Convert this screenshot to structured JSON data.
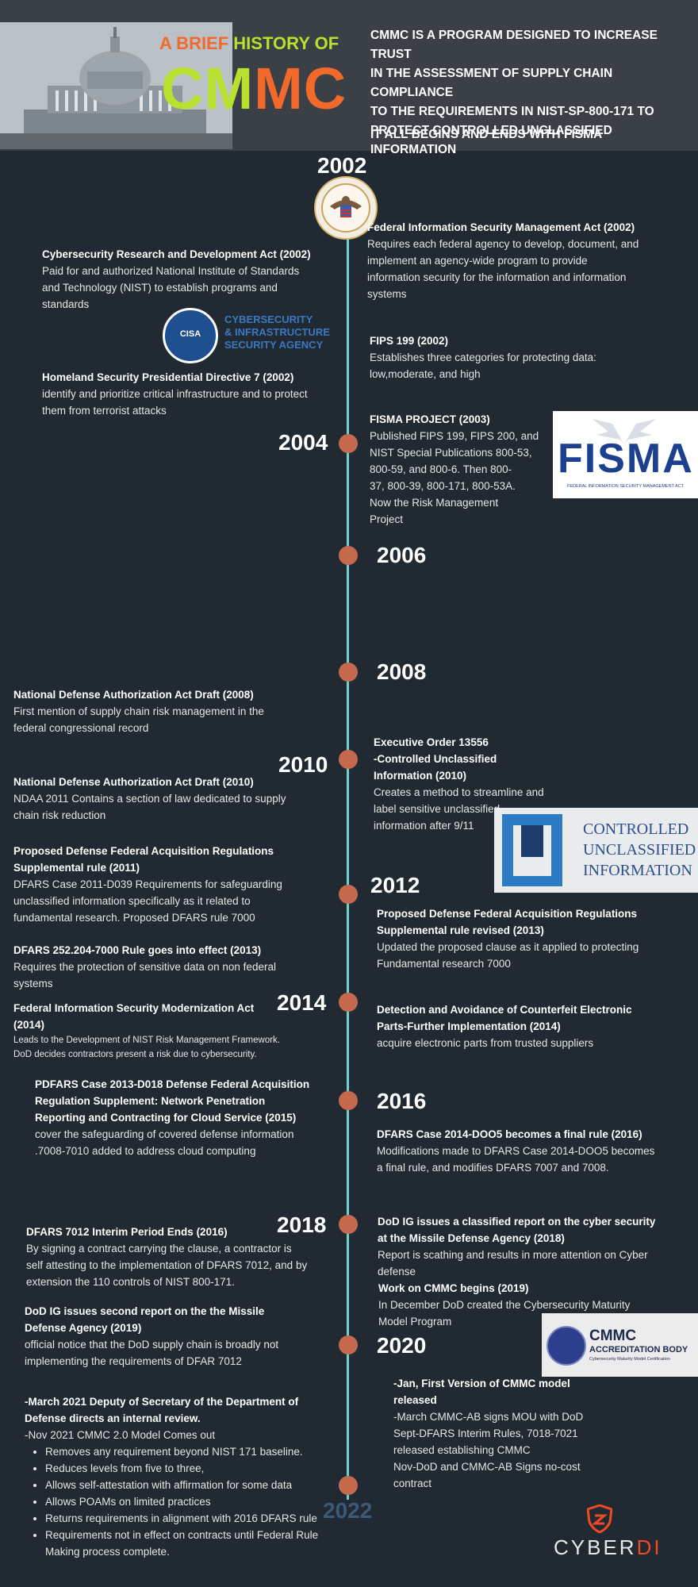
{
  "header": {
    "title_line1_a": "A BRIEF ",
    "title_line1_b": "HISTORY OF",
    "title_big_a": "CM",
    "title_big_b": "MC",
    "intro_lines": [
      "CMMC IS A PROGRAM DESIGNED TO INCREASE TRUST",
      "IN THE ASSESSMENT OF SUPPLY CHAIN COMPLIANCE",
      "TO THE REQUIREMENTS  IN NIST-SP-800-171 TO",
      "PROTECT CONTROLLED UNCLASSIFIED INFORMATION"
    ],
    "tagline": "IT ALL BEGINS AND ENDS WITH FISMA"
  },
  "years": {
    "y2002": "2002",
    "y2004": "2004",
    "y2006": "2006",
    "y2008": "2008",
    "y2010": "2010",
    "y2012": "2012",
    "y2014": "2014",
    "y2016": "2016",
    "y2018": "2018",
    "y2020": "2020",
    "y2022": "2022"
  },
  "events": {
    "fisma2002": {
      "title": "Federal Information Security Management Act (2002)",
      "body": [
        "Requires each federal agency to develop, document, and",
        "implement an agency-wide program to provide",
        "information security for the information and information",
        "systems"
      ]
    },
    "crda": {
      "title": "Cybersecurity Research and Development Act (2002)",
      "body": [
        "Paid for and authorized National Institute of Standards",
        "and Technology (NIST) to establish programs and",
        "standards"
      ]
    },
    "fips199": {
      "title": "FIPS 199 (2002)",
      "body": [
        "Establishes three categories for protecting data:",
        "low,moderate, and high"
      ]
    },
    "hspd7": {
      "title": "Homeland Security Presidential Directive 7 (2002)",
      "body": [
        "identify and prioritize critical infrastructure and to protect",
        "them from terrorist attacks"
      ]
    },
    "fismaproject": {
      "title": "FISMA PROJECT (2003)",
      "body": [
        "Published FIPS 199, FIPS 200, and",
        "NIST Special Publications 800-53,",
        "800-59, and 800-6.  Then 800-",
        "37, 800-39, 800-171, 800-53A.",
        "Now the Risk Management",
        "Project"
      ]
    },
    "ndaa2008": {
      "title": "National Defense Authorization Act Draft  (2008)",
      "body": [
        "First mention of supply chain risk management in the",
        "federal congressional record"
      ]
    },
    "eo13556": {
      "title_line1": "Executive Order 13556",
      "title_line2": "-Controlled Unclassified Information (2010)",
      "body": [
        "Creates a method to streamline and",
        " label sensitive unclassified",
        " information after 9/11"
      ]
    },
    "ndaa2010": {
      "title": "National Defense Authorization Act Draft  (2010)",
      "body": [
        "NDAA 2011 Contains a section of law dedicated to supply",
        "chain risk reduction"
      ]
    },
    "dfars2011": {
      "title": [
        "Proposed Defense Federal Acquisition Regulations",
        "Supplemental rule  (2011)"
      ],
      "body": [
        "DFARS Case 2011-D039 Requirements for safeguarding",
        "unclassified information specifically as it related to",
        "fundamental research. Proposed DFARS rule 7000"
      ]
    },
    "dfars2013rev": {
      "title": [
        "Proposed Defense Federal Acquisition Regulations",
        "Supplemental rule  revised (2013)"
      ],
      "body": [
        "Updated the proposed clause as it applied to protecting",
        "Fundamental research 7000"
      ]
    },
    "dfars7000": {
      "title": "DFARS 252.204-7000 Rule goes into effect (2013)",
      "body": [
        "Requires the protection of sensitive data on non federal",
        "systems"
      ]
    },
    "fisma2014": {
      "title": "Federal Information Security Modernization  Act",
      "title_year": "(2014)",
      "body": [
        " Leads to the Development of  NIST Risk Management Framework.",
        "DoD decides contractors present a risk due to cybersecurity."
      ]
    },
    "counterfeit": {
      "title": [
        "Detection and Avoidance of Counterfeit Electronic",
        "Parts-Further Implementation  (2014)"
      ],
      "body": [
        "acquire electronic parts from trusted suppliers"
      ]
    },
    "pdfars2015": {
      "title": [
        "PDFARS Case 2013-D018 Defense Federal Acquisition",
        "Regulation Supplement: Network Penetration",
        "Reporting and Contracting for Cloud Service  (2015)"
      ],
      "body": [
        "cover the safeguarding of covered defense information",
        ".7008-7010 added to address cloud computing"
      ]
    },
    "dfars2016final": {
      "title": "DFARS Case 2014-DOO5 becomes a final rule  (2016)",
      "body": [
        "Modifications made to DFARS Case 2014-DOO5 becomes",
        "a final rule, and modifies DFARS 7007 and 7008."
      ]
    },
    "dfars7012": {
      "title": "DFARS 7012 Interim Period Ends  (2016)",
      "body": [
        "By signing a contract carrying the clause, a contractor is",
        "self attesting to the implementation of DFARS 7012, and by",
        "extension the 110 controls of NIST 800-171."
      ]
    },
    "dodig2018": {
      "title": [
        "DoD IG issues a classified report on the cyber security",
        "at the Missile Defense Agency (2018)"
      ],
      "body": [
        "Report is scathing and results in more attention on Cyber",
        "defense"
      ]
    },
    "cmmcbegins": {
      "title": "Work on CMMC begins   (2019)",
      "body": [
        "In December  DoD created the Cybersecurity Maturity",
        "Model Program"
      ]
    },
    "dodig2019": {
      "title": [
        "DoD IG issues second report on the  the Missile",
        "Defense Agency (2019)"
      ],
      "body": [
        "official notice that the DoD supply chain is broadly not",
        "implementing the requirements of DFAR 7012"
      ]
    },
    "cmmc2020": {
      "title": [
        "-Jan, First Version of CMMC model",
        "released"
      ],
      "body": [
        "-March CMMC-AB signs MOU with  DoD",
        "Sept-DFARS Interim Rules, 7018-7021",
        "released establishing CMMC",
        "Nov-DoD and CMMC-AB Signs no-cost",
        "contract"
      ]
    },
    "review2021": {
      "title": [
        "-March 2021 Deputy of Secretary of the Department of",
        "Defense directs an internal review."
      ],
      "intro": "-Nov 2021 CMMC 2.0 Model Comes out",
      "bullets": [
        "Removes any requirement beyond NIST 171 baseline.",
        "Reduces levels from five to three,",
        "Allows self-attestation with affirmation for some data",
        "Allows POAMs on limited practices",
        "Returns requirements in alignment with 2016 DFARS rule",
        "Requirements not in effect on contracts until Federal Rule",
        "Making process complete."
      ]
    }
  },
  "logos": {
    "cisa_seal": "CISA",
    "cisa_text": [
      "CYBERSECURITY",
      "& INFRASTRUCTURE",
      "SECURITY AGENCY"
    ],
    "fisma_word": "FISMA",
    "fisma_sub": "FEDERAL INFORMATION SECURITY MANAGEMENT ACT",
    "cui_text": [
      "CONTROLLED",
      "UNCLASSIFIED",
      "INFORMATION"
    ],
    "cmmc_ab_title": "CMMC",
    "cmmc_ab_sub": "ACCREDITATION BODY",
    "cmmc_ab_small": "Cybersecurity Maturity Model Certification",
    "brand_a": "CYBER",
    "brand_b": "DI"
  },
  "colors": {
    "orange": "#f26a2b",
    "lime": "#b8e02f",
    "spine": "#6fd0cf",
    "dot": "#c4694d",
    "background": "#212a33"
  }
}
